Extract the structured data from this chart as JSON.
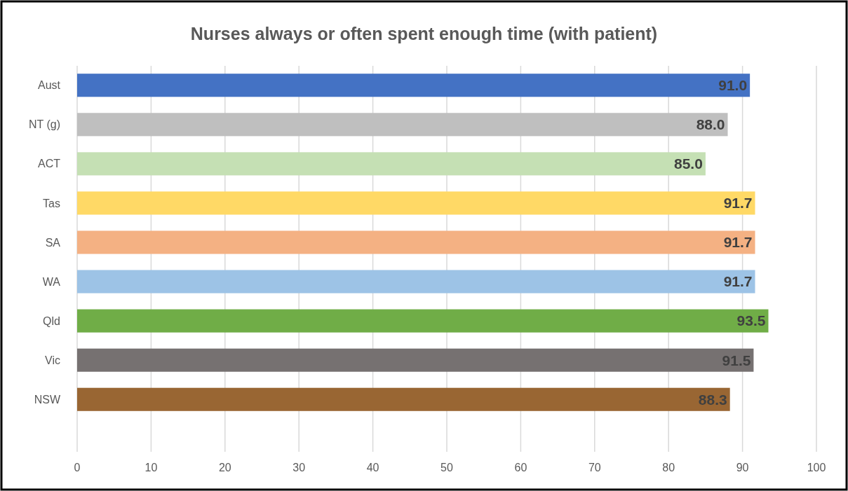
{
  "chart_data": {
    "type": "bar",
    "orientation": "horizontal",
    "title": "Nurses always or often spent enough time (with patient)",
    "categories": [
      "Aust",
      "NT (g)",
      "ACT",
      "Tas",
      "SA",
      "WA",
      "Qld",
      "Vic",
      "NSW"
    ],
    "values": [
      91.0,
      88.0,
      85.0,
      91.7,
      91.7,
      91.7,
      93.5,
      91.5,
      88.3
    ],
    "colors": [
      "#4472c4",
      "#bfbfbf",
      "#c5e0b4",
      "#ffd966",
      "#f4b183",
      "#9dc3e6",
      "#70ad47",
      "#767171",
      "#996633"
    ],
    "value_labels": [
      "91.0",
      "88.0",
      "85.0",
      "91.7",
      "91.7",
      "91.7",
      "93.5",
      "91.5",
      "88.3"
    ],
    "xlim": [
      0,
      100
    ],
    "xticks": [
      0,
      10,
      20,
      30,
      40,
      50,
      60,
      70,
      80,
      90,
      100
    ],
    "grid": "x"
  }
}
